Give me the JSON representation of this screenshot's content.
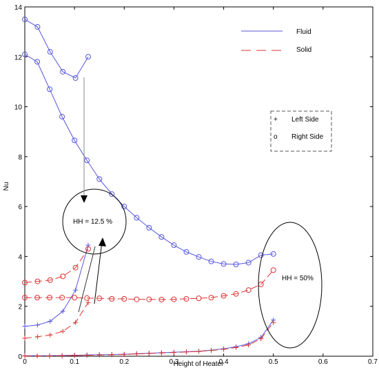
{
  "chart_data": {
    "type": "line",
    "xlabel": "Height of Heater",
    "ylabel": "Nu",
    "xlim": [
      0,
      0.7
    ],
    "ylim": [
      0,
      14
    ],
    "xticks": [
      "0",
      "0.1",
      "0.2",
      "0.3",
      "0.4",
      "0.5",
      "0.6",
      "0.7"
    ],
    "yticks": [
      "0",
      "2",
      "4",
      "6",
      "8",
      "10",
      "12",
      "14"
    ],
    "grid": false,
    "legend_lines": [
      {
        "label": "Fluid",
        "color": "#5555dd",
        "dash": "solid"
      },
      {
        "label": "Solid",
        "color": "#dd3333",
        "dash": "dashed"
      }
    ],
    "legend_markers": [
      {
        "symbol": "+",
        "label": "Left Side"
      },
      {
        "symbol": "o",
        "label": "Right Side"
      }
    ],
    "series": [
      {
        "color": "#5555dd",
        "dash": "solid",
        "marker": "o",
        "x": [
          0,
          0.0255,
          0.051,
          0.0765,
          0.102,
          0.1275
        ],
        "y": [
          13.5,
          13.2,
          12.2,
          11.4,
          11.15,
          12.0
        ]
      },
      {
        "color": "#5555dd",
        "dash": "solid",
        "marker": "o",
        "x": [
          0,
          0.025,
          0.05,
          0.075,
          0.1,
          0.125,
          0.15,
          0.175,
          0.2,
          0.225,
          0.25,
          0.275,
          0.3,
          0.325,
          0.35,
          0.375,
          0.4,
          0.425,
          0.45,
          0.475,
          0.5
        ],
        "y": [
          12.1,
          11.8,
          10.7,
          9.6,
          8.65,
          7.85,
          7.1,
          6.5,
          6.0,
          5.55,
          5.15,
          4.78,
          4.45,
          4.18,
          3.98,
          3.8,
          3.7,
          3.68,
          3.75,
          4.05,
          4.1
        ]
      },
      {
        "color": "#5555dd",
        "dash": "solid",
        "marker": "+",
        "x": [
          0,
          0.0255,
          0.051,
          0.0765,
          0.102,
          0.1275
        ],
        "y": [
          1.2,
          1.25,
          1.4,
          1.8,
          2.65,
          4.45
        ]
      },
      {
        "color": "#dd3333",
        "dash": "dashed",
        "marker": "+",
        "x": [
          0,
          0.0255,
          0.051,
          0.0765,
          0.102,
          0.1275
        ],
        "y": [
          0.72,
          0.78,
          0.85,
          1.0,
          1.35,
          2.15
        ]
      },
      {
        "color": "#dd3333",
        "dash": "dashed",
        "marker": "o",
        "x": [
          0,
          0.0255,
          0.051,
          0.0765,
          0.102,
          0.1275
        ],
        "y": [
          2.95,
          3.0,
          3.05,
          3.2,
          3.55,
          4.3
        ]
      },
      {
        "color": "#dd3333",
        "dash": "dashed",
        "marker": "o",
        "x": [
          0,
          0.025,
          0.05,
          0.075,
          0.1,
          0.125,
          0.15,
          0.175,
          0.2,
          0.225,
          0.25,
          0.275,
          0.3,
          0.325,
          0.35,
          0.375,
          0.4,
          0.425,
          0.45,
          0.475,
          0.5
        ],
        "y": [
          2.35,
          2.35,
          2.35,
          2.35,
          2.35,
          2.33,
          2.32,
          2.3,
          2.3,
          2.28,
          2.28,
          2.27,
          2.28,
          2.3,
          2.32,
          2.35,
          2.42,
          2.5,
          2.65,
          2.88,
          3.45
        ]
      },
      {
        "color": "#5555dd",
        "dash": "solid",
        "marker": "+",
        "x": [
          0,
          0.025,
          0.05,
          0.075,
          0.1,
          0.125,
          0.15,
          0.175,
          0.2,
          0.225,
          0.25,
          0.275,
          0.3,
          0.325,
          0.35,
          0.375,
          0.4,
          0.425,
          0.45,
          0.475,
          0.5
        ],
        "y": [
          0.02,
          0.02,
          0.02,
          0.03,
          0.04,
          0.05,
          0.06,
          0.07,
          0.08,
          0.1,
          0.12,
          0.14,
          0.16,
          0.18,
          0.2,
          0.24,
          0.3,
          0.38,
          0.5,
          0.75,
          1.45
        ]
      },
      {
        "color": "#dd3333",
        "dash": "dashed",
        "marker": "+",
        "x": [
          0,
          0.025,
          0.05,
          0.075,
          0.1,
          0.125,
          0.15,
          0.175,
          0.2,
          0.225,
          0.25,
          0.275,
          0.3,
          0.325,
          0.35,
          0.375,
          0.4,
          0.425,
          0.45,
          0.475,
          0.5
        ],
        "y": [
          0.01,
          0.01,
          0.01,
          0.02,
          0.03,
          0.04,
          0.05,
          0.06,
          0.07,
          0.09,
          0.11,
          0.13,
          0.15,
          0.17,
          0.19,
          0.23,
          0.28,
          0.35,
          0.45,
          0.7,
          1.35
        ]
      }
    ],
    "annotations": [
      {
        "text": "HH = 12.5 %"
      },
      {
        "text": "HH = 50%"
      }
    ]
  }
}
